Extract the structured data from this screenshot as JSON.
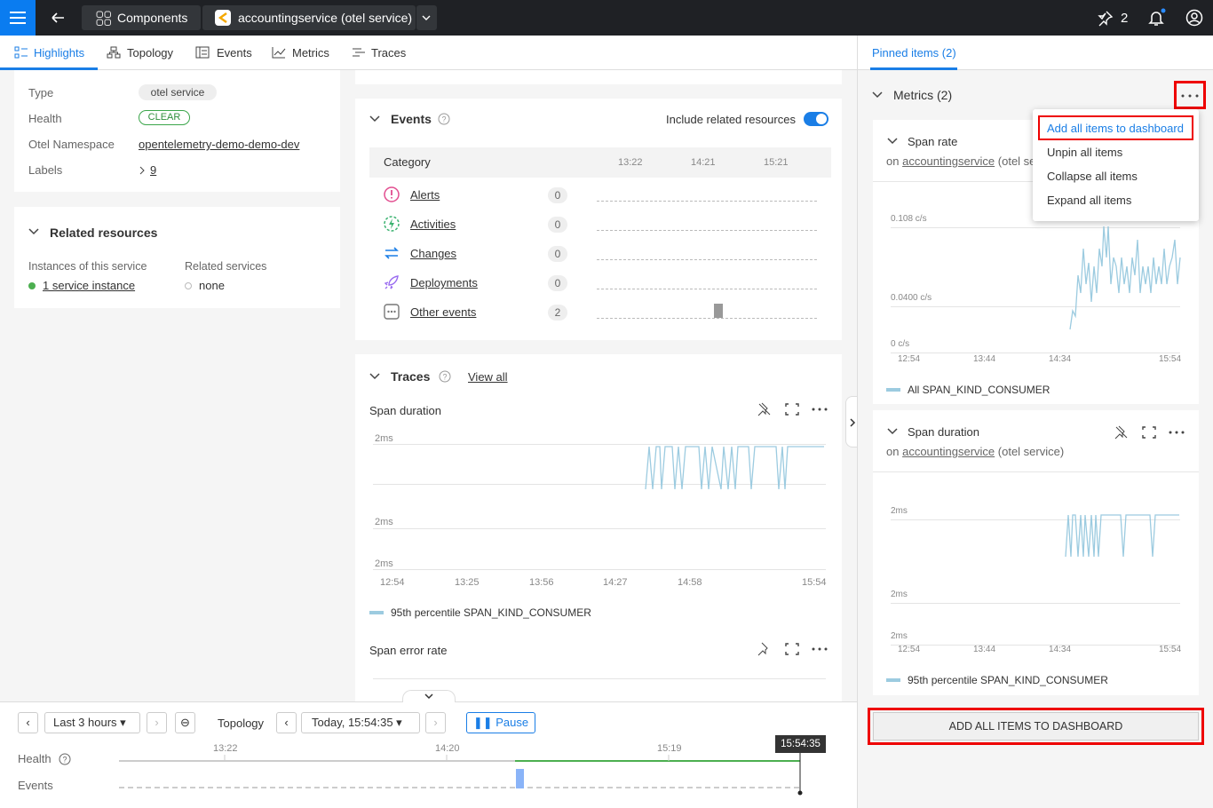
{
  "topbar": {
    "breadcrumbs": [
      "Components",
      "accountingservice (otel service)"
    ],
    "pins": 2
  },
  "tabs": [
    "Highlights",
    "Topology",
    "Events",
    "Metrics",
    "Traces"
  ],
  "properties": [
    {
      "label": "Type",
      "value": "otel service"
    },
    {
      "label": "Health",
      "value": "CLEAR"
    },
    {
      "label": "Otel Namespace",
      "value": "opentelemetry-demo-demo-dev"
    },
    {
      "label": "Labels",
      "value": 9
    }
  ],
  "related": {
    "title": "Related resources",
    "instances_label": "Instances of this service",
    "instances_value": "1 service instance",
    "services_label": "Related services",
    "services_value": "none"
  },
  "events": {
    "title": "Events",
    "toggle_label": "Include related resources",
    "column": "Category",
    "times": [
      "13:22",
      "14:21",
      "15:21"
    ],
    "rows": [
      {
        "name": "Alerts",
        "count": 0
      },
      {
        "name": "Activities",
        "count": 0
      },
      {
        "name": "Changes",
        "count": 0
      },
      {
        "name": "Deployments",
        "count": 0
      },
      {
        "name": "Other events",
        "count": 2
      }
    ]
  },
  "traces": {
    "title": "Traces",
    "view_all": "View all",
    "charts": [
      {
        "title": "Span duration",
        "yticks": [
          "2ms",
          "2ms",
          "2ms"
        ],
        "xticks": [
          "12:54",
          "13:25",
          "13:56",
          "14:27",
          "14:58",
          "15:54"
        ],
        "legend": "95th percentile SPAN_KIND_CONSUMER"
      },
      {
        "title": "Span error rate"
      }
    ]
  },
  "timeline": {
    "range": "Last 3 hours",
    "mode": "Topology",
    "time": "Today, 15:54:35",
    "pause": "Pause",
    "ticks": [
      "13:22",
      "14:20",
      "15:19"
    ],
    "cursor": "15:54:35",
    "rows": [
      "Health",
      "Events"
    ]
  },
  "pinned": {
    "tab": "Pinned items (2)",
    "group": "Metrics (2)",
    "menu": [
      "Add all items to dashboard",
      "Unpin all items",
      "Collapse all items",
      "Expand all items"
    ],
    "items": [
      {
        "title": "Span rate",
        "on": "on",
        "target": "accountingservice",
        "suffix": "(otel service)",
        "yticks": [
          "0.108 c/s",
          "0.0400 c/s",
          "0 c/s"
        ],
        "xticks": [
          "12:54",
          "13:44",
          "14:34",
          "15:54"
        ],
        "legend": "All SPAN_KIND_CONSUMER"
      },
      {
        "title": "Span duration",
        "on": "on",
        "target": "accountingservice",
        "suffix": "(otel service)",
        "yticks": [
          "2ms",
          "2ms",
          "2ms"
        ],
        "xticks": [
          "12:54",
          "13:44",
          "14:34",
          "15:54"
        ],
        "legend": "95th percentile SPAN_KIND_CONSUMER"
      }
    ],
    "button": "ADD ALL ITEMS TO DASHBOARD"
  }
}
